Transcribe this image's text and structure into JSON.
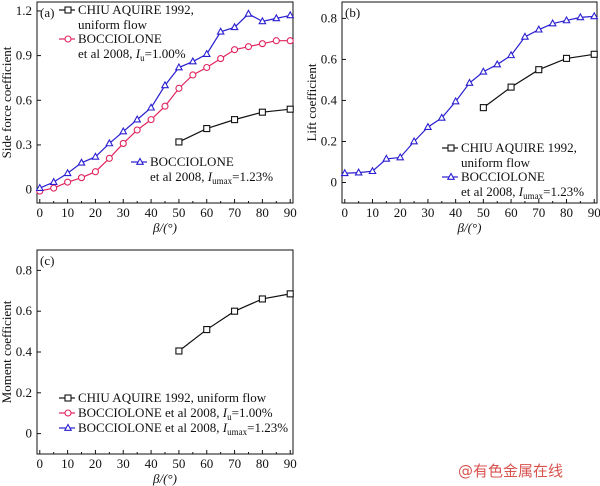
{
  "watermark": "@有色金属在线",
  "colors": {
    "chiu": "#111111",
    "bocc_iu": "#e0245e",
    "bocc_iumax": "#2a1fd0"
  },
  "chart_data": [
    {
      "type": "line",
      "panel_label": "(a)",
      "xlabel": "β/(°)",
      "ylabel": "Side force coefficient",
      "xlim": [
        -1,
        91
      ],
      "ylim": [
        -0.09,
        1.26
      ],
      "xticks": [
        0,
        10,
        20,
        30,
        40,
        50,
        60,
        70,
        80,
        90
      ],
      "yticks": [
        0,
        0.3,
        0.6,
        0.9,
        1.2
      ],
      "ytick_labels": [
        "0",
        "0.3",
        "0.6",
        "0.9",
        "1.2"
      ],
      "series": [
        {
          "key": "chiu",
          "name": "CHIU AQUIRE 1992, uniform flow",
          "marker": "square",
          "x": [
            50,
            60,
            70,
            80,
            90
          ],
          "y": [
            0.32,
            0.41,
            0.47,
            0.52,
            0.54
          ]
        },
        {
          "key": "bocc_iu",
          "name": "BOCCIOLONE et al 2008, Iu=1.00%",
          "marker": "circle",
          "x": [
            0,
            5,
            10,
            15,
            20,
            25,
            30,
            35,
            40,
            45,
            50,
            55,
            60,
            65,
            70,
            75,
            80,
            85,
            90
          ],
          "y": [
            -0.01,
            0.01,
            0.05,
            0.08,
            0.12,
            0.21,
            0.31,
            0.4,
            0.47,
            0.56,
            0.68,
            0.77,
            0.82,
            0.88,
            0.94,
            0.96,
            0.98,
            1.0,
            1.0
          ]
        },
        {
          "key": "bocc_iumax",
          "name": "BOCCIOLONE et al 2008, Iumax=1.23%",
          "marker": "triangle",
          "x": [
            0,
            5,
            10,
            15,
            20,
            25,
            30,
            35,
            40,
            45,
            50,
            55,
            60,
            65,
            70,
            75,
            80,
            85,
            90
          ],
          "y": [
            0.01,
            0.05,
            0.11,
            0.18,
            0.22,
            0.31,
            0.39,
            0.47,
            0.55,
            0.7,
            0.82,
            0.86,
            0.91,
            1.06,
            1.09,
            1.18,
            1.13,
            1.15,
            1.17
          ]
        }
      ],
      "legend": [
        {
          "line1": "CHIU AQUIRE 1992,",
          "line2": "uniform flow"
        },
        {
          "line1": "BOCCIOLONE",
          "line2": "et al 2008, ",
          "sym": "I",
          "sub": "u",
          "tail": "=1.00%"
        },
        {
          "line1": "BOCCIOLONE",
          "line2": "et al 2008, ",
          "sym": "I",
          "sub": "umax",
          "tail": "=1.23%"
        }
      ]
    },
    {
      "type": "line",
      "panel_label": "(b)",
      "xlabel": "β/(°)",
      "ylabel": "Lift coefficient",
      "xlim": [
        -1,
        91
      ],
      "ylim": [
        -0.1,
        0.88
      ],
      "xticks": [
        0,
        10,
        20,
        30,
        40,
        50,
        60,
        70,
        80,
        90
      ],
      "yticks": [
        0,
        0.2,
        0.4,
        0.6,
        0.8
      ],
      "ytick_labels": [
        "0",
        "0.2",
        "0.4",
        "0.6",
        "0.8"
      ],
      "series": [
        {
          "key": "chiu",
          "name": "CHIU AQUIRE 1992, uniform flow",
          "marker": "square",
          "x": [
            50,
            60,
            70,
            80,
            90
          ],
          "y": [
            0.365,
            0.465,
            0.55,
            0.605,
            0.625
          ]
        },
        {
          "key": "bocc_iumax",
          "name": "BOCCIOLONE et al 2008, Iumax=1.23%",
          "marker": "triangle",
          "x": [
            0,
            5,
            10,
            15,
            20,
            25,
            30,
            35,
            40,
            45,
            50,
            55,
            60,
            65,
            70,
            75,
            80,
            85,
            90
          ],
          "y": [
            0.045,
            0.048,
            0.055,
            0.115,
            0.122,
            0.2,
            0.27,
            0.315,
            0.395,
            0.485,
            0.54,
            0.575,
            0.62,
            0.71,
            0.745,
            0.775,
            0.79,
            0.805,
            0.81
          ]
        }
      ],
      "legend": [
        {
          "line1": "CHIU AQUIRE 1992,",
          "line2": "uniform flow"
        },
        {
          "line1": "BOCCIOLONE",
          "line2": "et al 2008, ",
          "sym": "I",
          "sub": "umax",
          "tail": "=1.23%"
        }
      ]
    },
    {
      "type": "line",
      "panel_label": "(c)",
      "xlabel": "β/(°)",
      "ylabel": "Moment coefficient",
      "xlim": [
        -1,
        91
      ],
      "ylim": [
        -0.1,
        0.9
      ],
      "xticks": [
        0,
        10,
        20,
        30,
        40,
        50,
        60,
        70,
        80,
        90
      ],
      "yticks": [
        0,
        0.2,
        0.4,
        0.6,
        0.8
      ],
      "ytick_labels": [
        "0",
        "0.2",
        "0.4",
        "0.6",
        "0.8"
      ],
      "series": [
        {
          "key": "chiu",
          "name": "CHIU AQUIRE 1992, uniform flow",
          "marker": "square",
          "x": [
            50,
            60,
            70,
            80,
            90
          ],
          "y": [
            0.405,
            0.51,
            0.6,
            0.66,
            0.685
          ]
        }
      ],
      "legend": [
        {
          "line1": "CHIU AQUIRE 1992, uniform flow"
        },
        {
          "line1": "BOCCIOLONE et al 2008, ",
          "sym": "I",
          "sub": "u",
          "tail": "=1.00%"
        },
        {
          "line1": "BOCCIOLONE et al 2008, ",
          "sym": "I",
          "sub": "umax",
          "tail": "=1.23%"
        }
      ]
    }
  ]
}
